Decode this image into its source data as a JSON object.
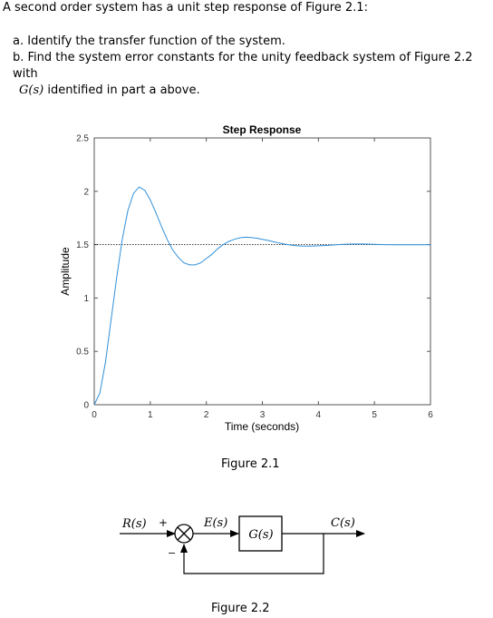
{
  "problem": {
    "intro": "A second order system has a unit step response of Figure 2.1:",
    "part_a": "a.  Identify the transfer function of the system.",
    "part_b_line1": "b.  Find the system error constants for the unity feedback system of Figure 2.2 with",
    "part_b_G": "G(s)",
    "part_b_line2_rest": " identified in part a above."
  },
  "figure1_caption": "Figure 2.1",
  "figure2_caption": "Figure 2.2",
  "chart_data": {
    "type": "line",
    "title": "Step Response",
    "xlabel": "Time (seconds)",
    "ylabel": "Amplitude",
    "xlim": [
      0,
      6
    ],
    "ylim": [
      0,
      2.5
    ],
    "xticks": [
      "0",
      "1",
      "2",
      "3",
      "4",
      "5",
      "6"
    ],
    "yticks": [
      "0",
      "0.5",
      "1",
      "1.5",
      "2",
      "2.5"
    ],
    "final_value": 1.5,
    "series_color": "#2f8fd8",
    "x": [
      0.0,
      0.1,
      0.2,
      0.3,
      0.4,
      0.5,
      0.6,
      0.7,
      0.8,
      0.9,
      1.0,
      1.1,
      1.2,
      1.3,
      1.4,
      1.5,
      1.6,
      1.7,
      1.8,
      1.9,
      2.0,
      2.1,
      2.2,
      2.3,
      2.4,
      2.5,
      2.6,
      2.7,
      2.8,
      2.9,
      3.0,
      3.1,
      3.2,
      3.3,
      3.4,
      3.5,
      3.6,
      3.7,
      3.8,
      3.9,
      4.0,
      4.2,
      4.4,
      4.6,
      4.8,
      5.0,
      5.2,
      5.4,
      5.6,
      5.8,
      6.0
    ],
    "values": [
      0.0,
      0.11,
      0.4,
      0.79,
      1.19,
      1.55,
      1.82,
      1.98,
      2.04,
      2.01,
      1.92,
      1.8,
      1.67,
      1.55,
      1.45,
      1.38,
      1.33,
      1.31,
      1.31,
      1.33,
      1.37,
      1.41,
      1.46,
      1.5,
      1.53,
      1.55,
      1.565,
      1.57,
      1.567,
      1.56,
      1.55,
      1.54,
      1.527,
      1.515,
      1.505,
      1.497,
      1.491,
      1.487,
      1.486,
      1.487,
      1.489,
      1.495,
      1.502,
      1.506,
      1.506,
      1.503,
      1.5,
      1.498,
      1.498,
      1.499,
      1.5
    ]
  },
  "block_diagram": {
    "input_label": "R(s)",
    "plus_sign": "+",
    "minus_sign": "−",
    "error_label": "E(s)",
    "plant_label": "G(s)",
    "output_label": "C(s)"
  }
}
